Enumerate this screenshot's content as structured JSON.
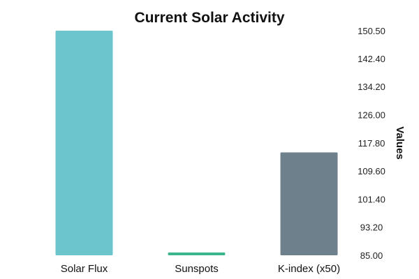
{
  "chart_data": {
    "type": "bar",
    "title": "Current Solar Activity",
    "xlabel": "",
    "ylabel": "Values",
    "categories": [
      "Solar Flux",
      "Sunspots",
      "K-index (x50)"
    ],
    "values": [
      150.5,
      85.8,
      115.0
    ],
    "colors": [
      "#6cc5cd",
      "#3bb58c",
      "#6e808c"
    ],
    "ylim": [
      85.0,
      150.5
    ],
    "yticks": [
      "150.50",
      "142.40",
      "134.20",
      "126.00",
      "117.80",
      "109.60",
      "101.40",
      "93.20",
      "85.00"
    ],
    "y_axis_side": "right",
    "grid": false,
    "legend": false
  }
}
